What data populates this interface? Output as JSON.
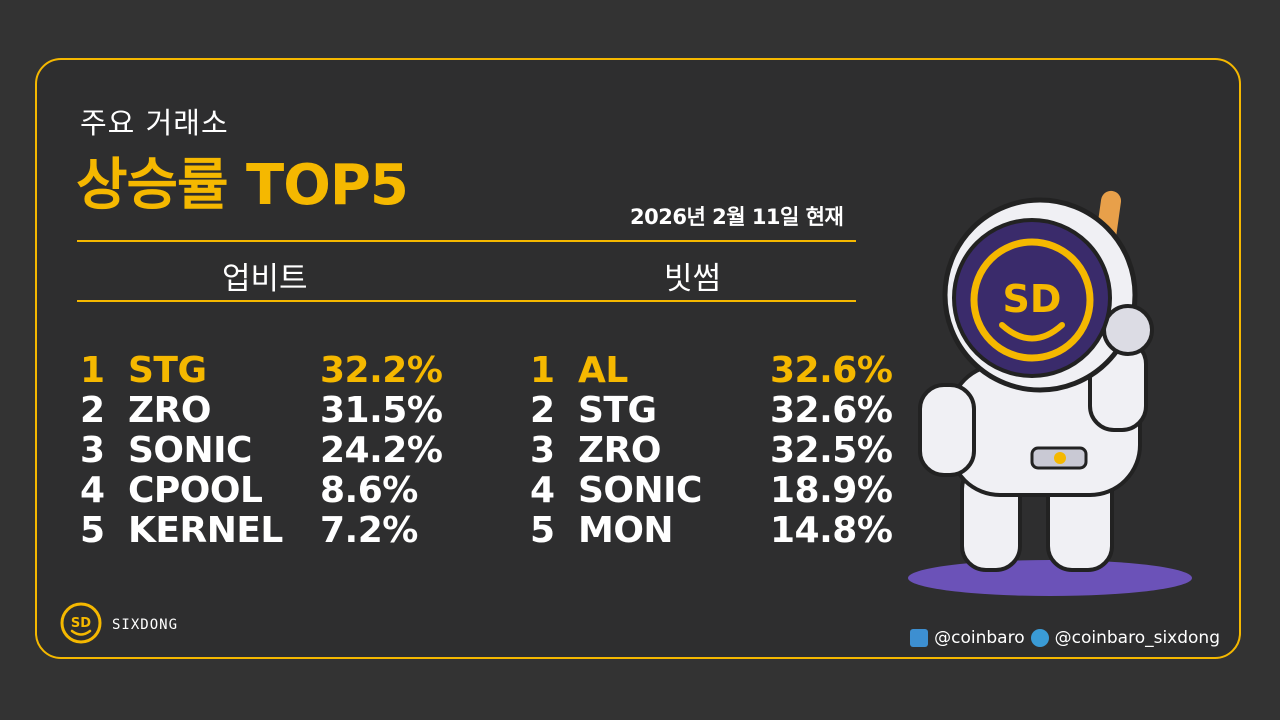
{
  "header": {
    "subtitle": "주요 거래소",
    "title": "상승률 TOP5",
    "date": "2026년 2월 11일 현재"
  },
  "exchanges": {
    "upbit": {
      "name": "업비트",
      "rows": [
        {
          "rank": "1",
          "symbol": "STG",
          "change": "32.2%"
        },
        {
          "rank": "2",
          "symbol": "ZRO",
          "change": "31.5%"
        },
        {
          "rank": "3",
          "symbol": "SONIC",
          "change": "24.2%"
        },
        {
          "rank": "4",
          "symbol": "CPOOL",
          "change": "8.6%"
        },
        {
          "rank": "5",
          "symbol": "KERNEL",
          "change": "7.2%"
        }
      ]
    },
    "bithumb": {
      "name": "빗썸",
      "rows": [
        {
          "rank": "1",
          "symbol": "AL",
          "change": "32.6%"
        },
        {
          "rank": "2",
          "symbol": "STG",
          "change": "32.6%"
        },
        {
          "rank": "3",
          "symbol": "ZRO",
          "change": "32.5%"
        },
        {
          "rank": "4",
          "symbol": "SONIC",
          "change": "18.9%"
        },
        {
          "rank": "5",
          "symbol": "MON",
          "change": "14.8%"
        }
      ]
    }
  },
  "footer": {
    "brand": "SIXDONG",
    "logo_text": "SD",
    "twitter_handle": "@coinbaro",
    "telegram_handle": "@coinbaro_sixdong"
  },
  "mascot": {
    "badge_text": "SD"
  },
  "colors": {
    "accent": "#f5b800",
    "background": "#333333",
    "text": "#ffffff",
    "mascot_shadow": "#6b52b8"
  }
}
